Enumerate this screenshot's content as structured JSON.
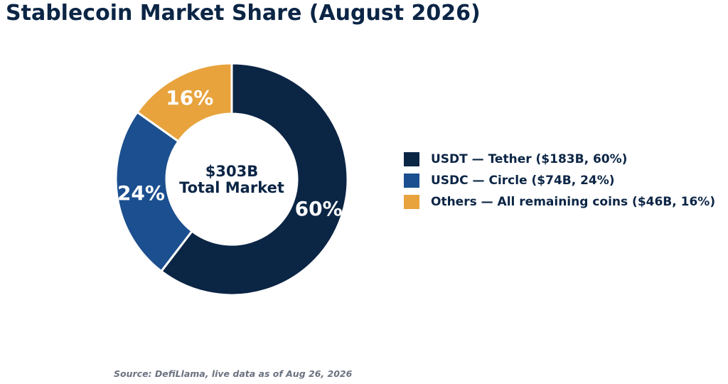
{
  "title": "Stablecoin Market Share (August 2026)",
  "center_label": {
    "line1": "$303B",
    "line2": "Total Market"
  },
  "source": "Source: DefiLlama, live data as of Aug 26, 2026",
  "chart_data": {
    "type": "pie",
    "title": "Stablecoin Market Share (August 2026)",
    "donut": true,
    "legend_position": "right",
    "slices": [
      {
        "label": "USDT — Tether ($183B, 60%)",
        "value": 183,
        "percent": 60,
        "pct_label": "60%",
        "color": "#0b2545"
      },
      {
        "label": "USDC — Circle ($74B, 24%)",
        "value": 74,
        "percent": 24,
        "pct_label": "24%",
        "color": "#1b4f8f"
      },
      {
        "label": "Others — All remaining coins ($46B, 16%)",
        "value": 46,
        "percent": 16,
        "pct_label": "16%",
        "color": "#e8a33d"
      }
    ]
  }
}
